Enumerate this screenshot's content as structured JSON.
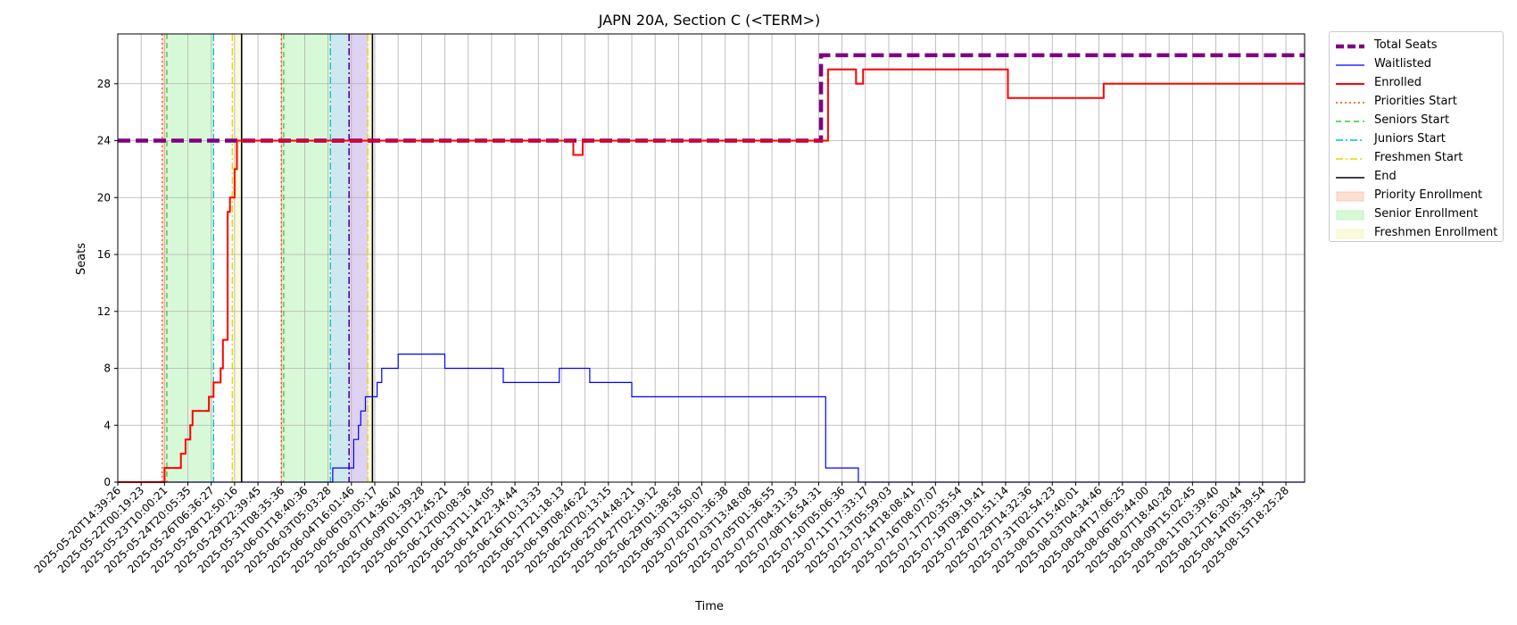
{
  "chart_data": {
    "type": "line",
    "title": "JAPN 20A, Section C (<TERM>)",
    "xlabel": "Time",
    "ylabel": "Seats",
    "ylim": [
      0,
      31.5
    ],
    "yticks": [
      0,
      4,
      8,
      12,
      16,
      20,
      24,
      28
    ],
    "grid": true,
    "legend_position": "outside-right-top",
    "x_ticks": [
      "2025-05-20T14:39:26",
      "2025-05-22T00:19:23",
      "2025-05-23T10:00:21",
      "2025-05-24T20:05:35",
      "2025-05-26T06:36:27",
      "2025-05-28T12:50:16",
      "2025-05-29T22:39:45",
      "2025-05-31T08:35:36",
      "2025-06-01T18:40:36",
      "2025-06-03T05:03:28",
      "2025-06-04T16:01:46",
      "2025-06-06T03:05:17",
      "2025-06-07T14:36:40",
      "2025-06-09T01:39:28",
      "2025-06-10T12:45:21",
      "2025-06-12T00:08:36",
      "2025-06-13T11:14:05",
      "2025-06-14T22:34:44",
      "2025-06-16T10:13:33",
      "2025-06-17T21:18:13",
      "2025-06-19T08:46:22",
      "2025-06-20T20:13:15",
      "2025-06-25T14:48:21",
      "2025-06-27T02:19:12",
      "2025-06-29T01:38:58",
      "2025-06-30T13:50:07",
      "2025-07-02T01:36:38",
      "2025-07-03T13:48:08",
      "2025-07-05T01:36:55",
      "2025-07-07T04:31:33",
      "2025-07-08T16:54:31",
      "2025-07-10T05:06:36",
      "2025-07-11T17:33:17",
      "2025-07-13T05:59:03",
      "2025-07-14T18:08:41",
      "2025-07-16T08:07:07",
      "2025-07-17T20:35:54",
      "2025-07-19T09:19:41",
      "2025-07-28T01:51:14",
      "2025-07-29T14:32:36",
      "2025-07-31T02:54:23",
      "2025-08-01T15:40:01",
      "2025-08-03T04:34:46",
      "2025-08-04T17:06:25",
      "2025-08-06T05:44:00",
      "2025-08-07T18:40:28",
      "2025-08-09T15:02:45",
      "2025-08-11T03:39:40",
      "2025-08-12T16:30:44",
      "2025-08-14T05:39:54",
      "2025-08-15T18:25:28"
    ],
    "series": [
      {
        "name": "Total Seats",
        "color": "#800080",
        "style": "dashed",
        "points": [
          [
            0,
            24
          ],
          [
            30.1,
            24
          ],
          [
            30.1,
            30
          ],
          [
            50.8,
            30
          ]
        ]
      },
      {
        "name": "Waitlisted",
        "color": "#0000ff",
        "style": "solid",
        "points": [
          [
            0,
            0
          ],
          [
            9.2,
            0
          ],
          [
            9.2,
            1
          ],
          [
            10.1,
            1
          ],
          [
            10.1,
            3
          ],
          [
            10.3,
            3
          ],
          [
            10.3,
            4
          ],
          [
            10.4,
            4
          ],
          [
            10.4,
            5
          ],
          [
            10.6,
            5
          ],
          [
            10.6,
            6
          ],
          [
            11.1,
            6
          ],
          [
            11.1,
            7
          ],
          [
            11.3,
            7
          ],
          [
            11.3,
            8
          ],
          [
            12.0,
            8
          ],
          [
            12.0,
            9
          ],
          [
            14.0,
            9
          ],
          [
            14.0,
            8
          ],
          [
            16.5,
            8
          ],
          [
            16.5,
            7
          ],
          [
            18.9,
            7
          ],
          [
            18.9,
            8
          ],
          [
            20.2,
            8
          ],
          [
            20.2,
            7
          ],
          [
            22.0,
            7
          ],
          [
            22.0,
            6
          ],
          [
            30.3,
            6
          ],
          [
            30.3,
            1
          ],
          [
            31.7,
            1
          ],
          [
            31.7,
            0
          ],
          [
            50.8,
            0
          ]
        ]
      },
      {
        "name": "Enrolled",
        "color": "#ff0000",
        "style": "solid",
        "points": [
          [
            0,
            0
          ],
          [
            2.0,
            0
          ],
          [
            2.0,
            1
          ],
          [
            2.7,
            1
          ],
          [
            2.7,
            2
          ],
          [
            2.9,
            2
          ],
          [
            2.9,
            3
          ],
          [
            3.1,
            3
          ],
          [
            3.1,
            4
          ],
          [
            3.2,
            4
          ],
          [
            3.2,
            5
          ],
          [
            3.9,
            5
          ],
          [
            3.9,
            6
          ],
          [
            4.1,
            6
          ],
          [
            4.1,
            7
          ],
          [
            4.4,
            7
          ],
          [
            4.4,
            8
          ],
          [
            4.5,
            8
          ],
          [
            4.5,
            10
          ],
          [
            4.7,
            10
          ],
          [
            4.7,
            19
          ],
          [
            4.8,
            19
          ],
          [
            4.8,
            20
          ],
          [
            5.0,
            20
          ],
          [
            5.0,
            22
          ],
          [
            5.1,
            22
          ],
          [
            5.1,
            24
          ],
          [
            19.5,
            24
          ],
          [
            19.5,
            23
          ],
          [
            19.9,
            23
          ],
          [
            19.9,
            24
          ],
          [
            30.4,
            24
          ],
          [
            30.4,
            29
          ],
          [
            31.6,
            29
          ],
          [
            31.6,
            28
          ],
          [
            31.9,
            28
          ],
          [
            31.9,
            29
          ],
          [
            38.1,
            29
          ],
          [
            38.1,
            27
          ],
          [
            42.2,
            27
          ],
          [
            42.2,
            28
          ],
          [
            50.8,
            28
          ]
        ]
      }
    ],
    "vlines": [
      {
        "name": "Priorities Start",
        "color": "#ff4500",
        "style": "dotted",
        "x": [
          1.9,
          7.0
        ]
      },
      {
        "name": "Seniors Start",
        "color": "#32cd32",
        "style": "dashed",
        "x": [
          2.1,
          7.1
        ]
      },
      {
        "name": "Juniors Start",
        "color": "#00bcd4",
        "style": "dashdot",
        "x": [
          4.1,
          9.1
        ]
      },
      {
        "name": "Freshmen Start",
        "color": "#e6d200",
        "style": "dashdot",
        "x": [
          4.9,
          10.7
        ]
      },
      {
        "name": "End",
        "color": "#000000",
        "style": "solid",
        "x": [
          5.3,
          10.9
        ]
      }
    ],
    "spans": [
      {
        "name": "Priority Enrollment",
        "color": "#f4a582",
        "ranges": [
          [
            1.9,
            2.1
          ],
          [
            7.0,
            7.1
          ]
        ]
      },
      {
        "name": "Senior Enrollment",
        "color": "#90ee90",
        "ranges": [
          [
            2.1,
            4.1
          ],
          [
            7.1,
            9.1
          ]
        ]
      },
      {
        "name": "Freshmen Enrollment",
        "color": "#f0f0a0",
        "ranges": [
          [
            4.9,
            5.3
          ],
          [
            10.7,
            10.9
          ]
        ]
      }
    ],
    "extra_spans": [
      {
        "color": "#add8e6",
        "range": [
          9.1,
          9.9
        ]
      },
      {
        "color": "#c8b4ea",
        "range": [
          9.9,
          10.7
        ]
      }
    ],
    "extra_vline": {
      "color": "#5500aa",
      "style": "dashdot",
      "x": 9.9
    }
  }
}
